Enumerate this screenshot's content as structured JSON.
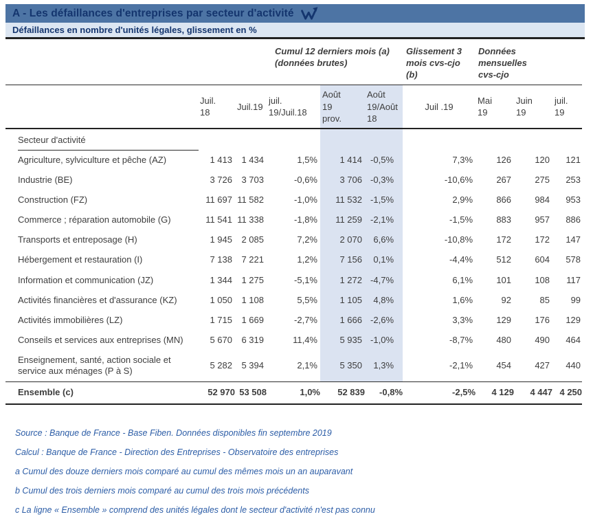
{
  "header": {
    "title": "A - Les défaillances d'entreprises par secteur d'activité",
    "subtitle": "Défaillances en nombre d'unités légales, glissement en %"
  },
  "colors": {
    "title_bar": "#4d74a4",
    "subtitle_bar": "#dce6f2",
    "navy_text": "#14356e",
    "highlight_band": "#dbe3f1",
    "body_text": "#3d3d3d",
    "note_blue": "#2b5ca6",
    "rule_dark": "#212121"
  },
  "table": {
    "group_headers": {
      "cumul": "Cumul 12 derniers mois (a)\n(données brutes)",
      "glissement": "Glissement 3\nmois cvs-cjo\n(b)",
      "mensuelles": "Données\nmensuelles\ncvs-cjo"
    },
    "col_headers": [
      "Juil.\n18",
      "Juil.19",
      "juil.\n19/Juil.18",
      "Août\n19\nprov.",
      "Août\n19/Août\n18",
      "Juil .19",
      "Mai\n19",
      "Juin\n19",
      "juil.\n19"
    ],
    "section_label": "Secteur d'activité",
    "rows": [
      {
        "label": "Agriculture, sylviculture et pêche (AZ)",
        "cells": [
          "1 413",
          "1 434",
          "1,5%",
          "1 414",
          "-0,5%",
          "7,3%",
          "126",
          "120",
          "121"
        ],
        "bold": false
      },
      {
        "label": "Industrie (BE)",
        "cells": [
          "3 726",
          "3 703",
          "-0,6%",
          "3 706",
          "-0,3%",
          "-10,6%",
          "267",
          "275",
          "253"
        ],
        "bold": false
      },
      {
        "label": "Construction (FZ)",
        "cells": [
          "11 697",
          "11 582",
          "-1,0%",
          "11 532",
          "-1,5%",
          "2,9%",
          "866",
          "984",
          "953"
        ],
        "bold": false
      },
      {
        "label": "Commerce ; réparation automobile (G)",
        "cells": [
          "11 541",
          "11 338",
          "-1,8%",
          "11 259",
          "-2,1%",
          "-1,5%",
          "883",
          "957",
          "886"
        ],
        "bold": false
      },
      {
        "label": "Transports et entreposage (H)",
        "cells": [
          "1 945",
          "2 085",
          "7,2%",
          "2 070",
          "6,6%",
          "-10,8%",
          "172",
          "172",
          "147"
        ],
        "bold": false
      },
      {
        "label": "Hébergement et restauration (I)",
        "cells": [
          "7 138",
          "7 221",
          "1,2%",
          "7 156",
          "0,1%",
          "-4,4%",
          "512",
          "604",
          "578"
        ],
        "bold": false
      },
      {
        "label": "Information et communication (JZ)",
        "cells": [
          "1 344",
          "1 275",
          "-5,1%",
          "1 272",
          "-4,7%",
          "6,1%",
          "101",
          "108",
          "117"
        ],
        "bold": false
      },
      {
        "label": "Activités financières et d'assurance (KZ)",
        "cells": [
          "1 050",
          "1 108",
          "5,5%",
          "1 105",
          "4,8%",
          "1,6%",
          "92",
          "85",
          "99"
        ],
        "bold": false
      },
      {
        "label": "Activités immobilières (LZ)",
        "cells": [
          "1 715",
          "1 669",
          "-2,7%",
          "1 666",
          "-2,6%",
          "3,3%",
          "129",
          "176",
          "129"
        ],
        "bold": false
      },
      {
        "label": "Conseils et services aux entreprises (MN)",
        "cells": [
          "5 670",
          "6 319",
          "11,4%",
          "5 935",
          "-1,0%",
          "-8,7%",
          "480",
          "490",
          "464"
        ],
        "bold": false
      },
      {
        "label": "Enseignement, santé, action sociale et service aux ménages (P à S)",
        "cells": [
          "5 282",
          "5 394",
          "2,1%",
          "5 350",
          "1,3%",
          "-2,1%",
          "454",
          "427",
          "440"
        ],
        "bold": false
      },
      {
        "label": "Ensemble (c)",
        "cells": [
          "52 970",
          "53 508",
          "1,0%",
          "52 839",
          "-0,8%",
          "-2,5%",
          "4 129",
          "4 447",
          "4 250"
        ],
        "bold": true
      }
    ]
  },
  "notes": [
    "Source : Banque de France - Base Fiben. Données disponibles fin septembre 2019",
    "Calcul : Banque de France - Direction des Entreprises - Observatoire des entreprises",
    "a Cumul des douze derniers mois comparé au cumul des mêmes mois un an auparavant",
    "b Cumul des trois derniers mois comparé au cumul des trois mois précédents",
    "c La ligne « Ensemble » comprend des unités légales dont le secteur d'activité n'est pas connu"
  ]
}
